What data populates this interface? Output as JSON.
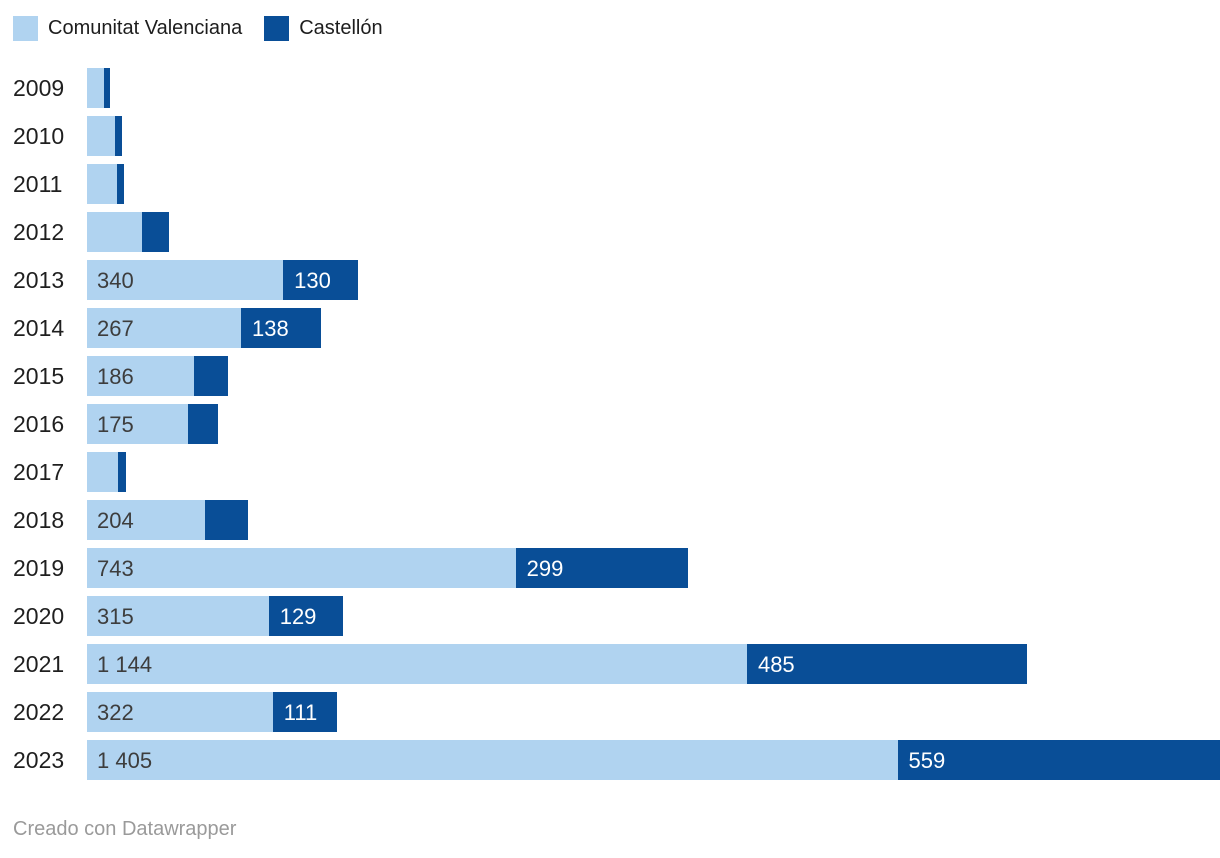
{
  "legend": {
    "items": [
      {
        "label": "Comunitat Valenciana",
        "color": "#b0d3f0"
      },
      {
        "label": "Castellón",
        "color": "#094e97"
      }
    ]
  },
  "chart_data": {
    "type": "bar",
    "orientation": "horizontal",
    "stacked": true,
    "title": "",
    "xlabel": "",
    "ylabel": "",
    "xlim": [
      0,
      1964
    ],
    "grid": false,
    "legend_position": "top-left",
    "categories": [
      "2009",
      "2010",
      "2011",
      "2012",
      "2013",
      "2014",
      "2015",
      "2016",
      "2017",
      "2018",
      "2019",
      "2020",
      "2021",
      "2022",
      "2023"
    ],
    "series": [
      {
        "name": "Comunitat Valenciana",
        "color": "#b0d3f0",
        "values": [
          30,
          49,
          52,
          95,
          340,
          267,
          186,
          175,
          54,
          204,
          743,
          315,
          1144,
          322,
          1405
        ],
        "labels": [
          "",
          "",
          "",
          "",
          "340",
          "267",
          "186",
          "175",
          "",
          "204",
          "743",
          "315",
          "1 144",
          "322",
          "1 405"
        ]
      },
      {
        "name": "Castellón",
        "color": "#094e97",
        "values": [
          10,
          11,
          13,
          48,
          130,
          138,
          59,
          52,
          13,
          75,
          299,
          129,
          485,
          111,
          559
        ],
        "labels": [
          "",
          "",
          "",
          "",
          "130",
          "138",
          "",
          "",
          "",
          "",
          "299",
          "129",
          "485",
          "111",
          "559"
        ]
      }
    ],
    "value_label_note": "values for 2009-2012, 2017 and some dark segments are unlabeled in the chart and estimated from bar widths"
  },
  "colors": {
    "label_on_light": "#3d3d3d",
    "label_on_dark": "#ffffff",
    "year_label": "#1f1f1f",
    "footer_text": "#9a9a9a"
  },
  "footer": {
    "text": "Creado con Datawrapper"
  }
}
